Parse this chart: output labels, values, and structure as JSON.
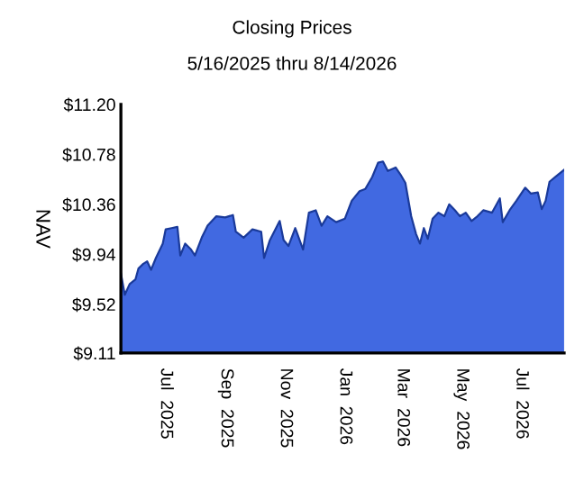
{
  "chart_data": {
    "type": "area",
    "title": "Closing Prices",
    "subtitle": "5/16/2025 thru 8/14/2026",
    "ylabel": "NAV",
    "x": [
      "2025-05-16",
      "2025-05-20",
      "2025-05-25",
      "2025-05-31",
      "2025-06-03",
      "2025-06-08",
      "2025-06-12",
      "2025-06-16",
      "2025-06-21",
      "2025-06-28",
      "2025-07-01",
      "2025-07-07",
      "2025-07-13",
      "2025-07-16",
      "2025-07-21",
      "2025-07-27",
      "2025-07-31",
      "2025-08-07",
      "2025-08-13",
      "2025-08-22",
      "2025-08-31",
      "2025-09-08",
      "2025-09-11",
      "2025-09-19",
      "2025-09-28",
      "2025-10-07",
      "2025-10-10",
      "2025-10-16",
      "2025-10-26",
      "2025-10-30",
      "2025-11-04",
      "2025-11-11",
      "2025-11-19",
      "2025-11-25",
      "2025-12-02",
      "2025-12-08",
      "2025-12-14",
      "2025-12-23",
      "2026-01-01",
      "2026-01-08",
      "2026-01-16",
      "2026-01-22",
      "2026-01-29",
      "2026-02-04",
      "2026-02-09",
      "2026-02-14",
      "2026-02-22",
      "2026-02-27",
      "2026-03-04",
      "2026-03-10",
      "2026-03-15",
      "2026-03-19",
      "2026-03-23",
      "2026-03-27",
      "2026-04-01",
      "2026-04-07",
      "2026-04-13",
      "2026-04-18",
      "2026-04-24",
      "2026-04-29",
      "2026-05-05",
      "2026-05-11",
      "2026-05-17",
      "2026-05-23",
      "2026-06-01",
      "2026-06-09",
      "2026-06-12",
      "2026-06-19",
      "2026-06-26",
      "2026-07-05",
      "2026-07-11",
      "2026-07-18",
      "2026-07-22",
      "2026-07-26",
      "2026-07-30",
      "2026-08-05",
      "2026-08-14"
    ],
    "series": [
      {
        "color": "#4169e1",
        "values": [
          9.78,
          9.6,
          9.69,
          9.73,
          9.82,
          9.86,
          9.88,
          9.81,
          9.91,
          10.03,
          10.15,
          10.16,
          10.17,
          9.93,
          10.03,
          9.98,
          9.93,
          10.08,
          10.18,
          10.26,
          10.25,
          10.27,
          10.13,
          10.08,
          10.15,
          10.13,
          9.91,
          10.06,
          10.22,
          10.06,
          10.01,
          10.16,
          9.98,
          10.29,
          10.31,
          10.18,
          10.26,
          10.21,
          10.24,
          10.39,
          10.47,
          10.49,
          10.59,
          10.71,
          10.72,
          10.64,
          10.67,
          10.61,
          10.54,
          10.26,
          10.11,
          10.03,
          10.16,
          10.07,
          10.24,
          10.29,
          10.26,
          10.36,
          10.31,
          10.26,
          10.29,
          10.22,
          10.26,
          10.31,
          10.29,
          10.41,
          10.21,
          10.31,
          10.39,
          10.5,
          10.45,
          10.46,
          10.32,
          10.39,
          10.55,
          10.59,
          10.65
        ]
      }
    ],
    "xlim": [
      "2025-05-16",
      "2026-08-14"
    ],
    "xticks": [
      {
        "value": "2025-07-01",
        "label": "Jul  2025"
      },
      {
        "value": "2025-09-01",
        "label": "Sep  2025"
      },
      {
        "value": "2025-11-01",
        "label": "Nov  2025"
      },
      {
        "value": "2026-01-01",
        "label": "Jan  2026"
      },
      {
        "value": "2026-03-01",
        "label": "Mar  2026"
      },
      {
        "value": "2026-05-01",
        "label": "May  2026"
      },
      {
        "value": "2026-07-01",
        "label": "Jul  2026"
      }
    ],
    "ylim": [
      9.11,
      11.2
    ],
    "yticks": [
      {
        "value": 9.11,
        "label": "$9.11"
      },
      {
        "value": 9.52,
        "label": "$9.52"
      },
      {
        "value": 9.94,
        "label": "$9.94"
      },
      {
        "value": 10.36,
        "label": "$10.36"
      },
      {
        "value": 10.78,
        "label": "$10.78"
      },
      {
        "value": 11.2,
        "label": "$11.20"
      }
    ],
    "grid": false,
    "legend": false
  }
}
